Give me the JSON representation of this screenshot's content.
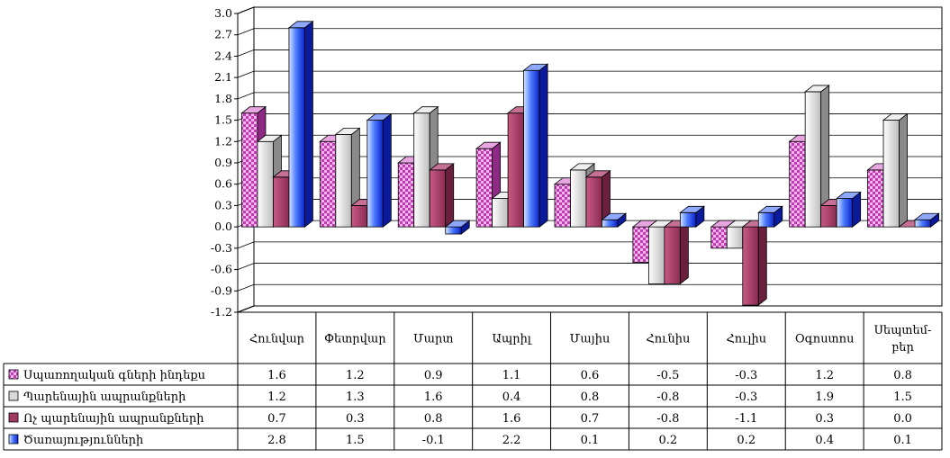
{
  "chart_data": {
    "type": "bar",
    "title": "",
    "xlabel": "",
    "ylabel": "",
    "ylim": [
      -1.2,
      3.0
    ],
    "yticks": [
      3.0,
      2.7,
      2.4,
      2.1,
      1.8,
      1.5,
      1.2,
      0.9,
      0.6,
      0.3,
      0.0,
      -0.3,
      -0.6,
      -0.9,
      -1.2
    ],
    "ytick_labels": [
      "3.0",
      "2.7",
      "2.4",
      "2.1",
      "1.8",
      "1.5",
      "1.2",
      "0.9",
      "0.6",
      "0.3",
      "0.0",
      "-0.3",
      "-0.6",
      "-0.9",
      "-1.2"
    ],
    "grid": true,
    "legend_placement": "data-table-left",
    "categories": [
      "Հունվար",
      "Փետրվար",
      "Մարտ",
      "Ապրիլ",
      "Մայիս",
      "Հունիս",
      "Հուլիս",
      "Օգոստոս",
      "Սեպտեմ-բեր"
    ],
    "category_lines": [
      [
        "Հունվար"
      ],
      [
        "Փետրվար"
      ],
      [
        "Մարտ"
      ],
      [
        "Ապրիլ"
      ],
      [
        "Մայիս"
      ],
      [
        "Հունիս"
      ],
      [
        "Հուլիս"
      ],
      [
        "Օգոստոս"
      ],
      [
        "Սեպտեմ-",
        "բեր"
      ]
    ],
    "series": [
      {
        "name": "Սպառողական գների ինդեքս",
        "values": [
          1.6,
          1.2,
          0.9,
          1.1,
          0.6,
          -0.5,
          -0.3,
          1.2,
          0.8
        ],
        "labels": [
          "1.6",
          "1.2",
          "0.9",
          "1.1",
          "0.6",
          "-0.5",
          "-0.3",
          "1.2",
          "0.8"
        ],
        "color": "#d35fc6",
        "pattern": "checker"
      },
      {
        "name": "Պարենային ապրանքների",
        "values": [
          1.2,
          1.3,
          1.6,
          0.4,
          0.8,
          -0.8,
          -0.3,
          1.9,
          1.5
        ],
        "labels": [
          "1.2",
          "1.3",
          "1.6",
          "0.4",
          "0.8",
          "-0.8",
          "-0.3",
          "1.9",
          "1.5"
        ],
        "color": "#d9d9d9",
        "pattern": "none"
      },
      {
        "name": "Ոչ պարենային ապրանքների",
        "values": [
          0.7,
          0.3,
          0.8,
          1.6,
          0.7,
          -0.8,
          -1.1,
          0.3,
          0.0
        ],
        "labels": [
          "0.7",
          "0.3",
          "0.8",
          "1.6",
          "0.7",
          "-0.8",
          "-1.1",
          "0.3",
          "0.0"
        ],
        "color": "#a33a63",
        "pattern": "none"
      },
      {
        "name": "Ծառայությունների",
        "values": [
          2.8,
          1.5,
          -0.1,
          2.2,
          0.1,
          0.2,
          0.2,
          0.4,
          0.1
        ],
        "labels": [
          "2.8",
          "1.5",
          "-0.1",
          "2.2",
          "0.1",
          "0.2",
          "0.2",
          "0.4",
          "0.1"
        ],
        "color": "#2a4ff0",
        "pattern": "none"
      }
    ]
  }
}
